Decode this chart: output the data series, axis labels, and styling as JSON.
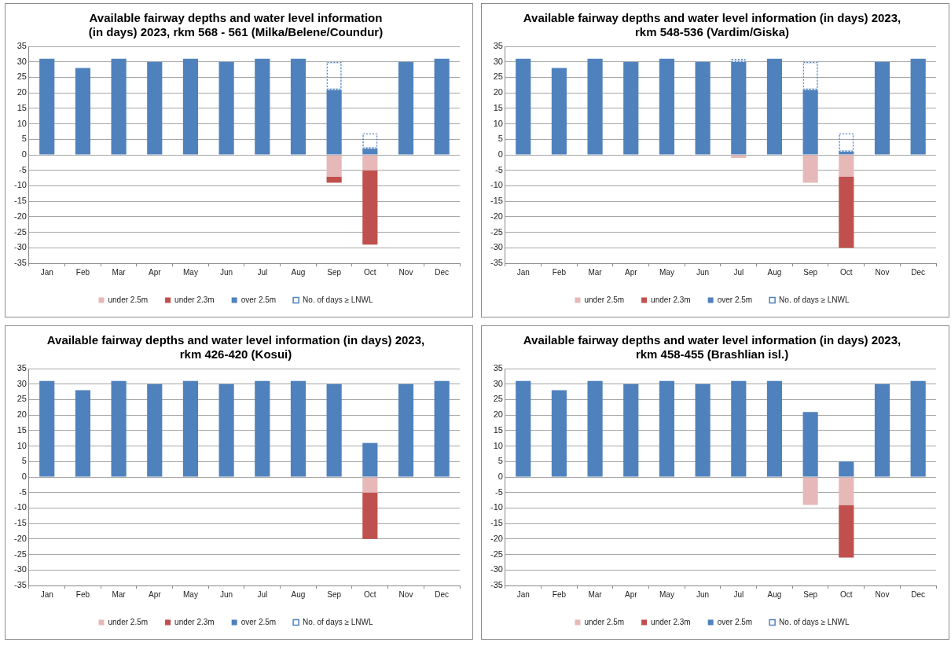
{
  "chart_data": [
    {
      "type": "bar",
      "title": "Available fairway depths and water level information\n(in days) 2023, rkm 568 - 561 (Milka/Belene/Coundur)",
      "categories": [
        "Jan",
        "Feb",
        "Mar",
        "Apr",
        "May",
        "Jun",
        "Jul",
        "Aug",
        "Sep",
        "Oct",
        "Nov",
        "Dec"
      ],
      "stacked": true,
      "ylim": [
        -35,
        35
      ],
      "yticks": [
        -35,
        -30,
        -25,
        -20,
        -15,
        -10,
        -5,
        0,
        5,
        10,
        15,
        20,
        25,
        30,
        35
      ],
      "grid": "y",
      "legend": "bottom",
      "series": [
        {
          "name": "under 2.5m",
          "color": "#e6b9b8",
          "values": [
            null,
            null,
            null,
            null,
            null,
            null,
            null,
            null,
            -7,
            -5,
            null,
            null
          ]
        },
        {
          "name": "under 2.3m",
          "color": "#c0504d",
          "values": [
            null,
            null,
            null,
            null,
            null,
            null,
            null,
            null,
            -2,
            -24,
            null,
            null
          ]
        },
        {
          "name": "over 2.5m",
          "color": "#4f81bd",
          "values": [
            31,
            28,
            31,
            30,
            31,
            30,
            31,
            31,
            21,
            2,
            30,
            31
          ]
        },
        {
          "name": "No. of days ≥ LNWL",
          "color": "#4f81bd",
          "line_style": "dotted",
          "values": [
            null,
            null,
            null,
            null,
            null,
            null,
            null,
            null,
            9,
            5,
            null,
            null
          ]
        }
      ]
    },
    {
      "type": "bar",
      "title": "Available fairway depths and water level information (in days) 2023,\nrkm 548-536 (Vardim/Giska)",
      "categories": [
        "Jan",
        "Feb",
        "Mar",
        "Apr",
        "May",
        "Jun",
        "Jul",
        "Aug",
        "Sep",
        "Oct",
        "Nov",
        "Dec"
      ],
      "stacked": true,
      "ylim": [
        -35,
        35
      ],
      "yticks": [
        -35,
        -30,
        -25,
        -20,
        -15,
        -10,
        -5,
        0,
        5,
        10,
        15,
        20,
        25,
        30,
        35
      ],
      "grid": "y",
      "legend": "bottom",
      "series": [
        {
          "name": "under 2.5m",
          "color": "#e6b9b8",
          "values": [
            null,
            null,
            null,
            null,
            null,
            null,
            -1,
            null,
            -9,
            -7,
            null,
            null
          ]
        },
        {
          "name": "under 2.3m",
          "color": "#c0504d",
          "values": [
            null,
            null,
            null,
            null,
            null,
            null,
            null,
            null,
            null,
            -23,
            null,
            null
          ]
        },
        {
          "name": "over 2.5m",
          "color": "#4f81bd",
          "values": [
            31,
            28,
            31,
            30,
            31,
            30,
            30,
            31,
            21,
            1,
            30,
            31
          ]
        },
        {
          "name": "No. of days ≥ LNWL",
          "color": "#4f81bd",
          "line_style": "dotted",
          "values": [
            null,
            null,
            null,
            null,
            null,
            null,
            1,
            null,
            9,
            6,
            null,
            null
          ]
        }
      ]
    },
    {
      "type": "bar",
      "title": "Available fairway depths and water level information (in days) 2023,\nrkm 426-420 (Kosui)",
      "categories": [
        "Jan",
        "Feb",
        "Mar",
        "Apr",
        "May",
        "Jun",
        "Jul",
        "Aug",
        "Sep",
        "Oct",
        "Nov",
        "Dec"
      ],
      "stacked": true,
      "ylim": [
        -35,
        35
      ],
      "yticks": [
        -35,
        -30,
        -25,
        -20,
        -15,
        -10,
        -5,
        0,
        5,
        10,
        15,
        20,
        25,
        30,
        35
      ],
      "grid": "y",
      "legend": "bottom",
      "series": [
        {
          "name": "under 2.5m",
          "color": "#e6b9b8",
          "values": [
            null,
            null,
            null,
            null,
            null,
            null,
            null,
            null,
            null,
            -5,
            null,
            null
          ]
        },
        {
          "name": "under 2.3m",
          "color": "#c0504d",
          "values": [
            null,
            null,
            null,
            null,
            null,
            null,
            null,
            null,
            null,
            -15,
            null,
            null
          ]
        },
        {
          "name": "over 2.5m",
          "color": "#4f81bd",
          "values": [
            31,
            28,
            31,
            30,
            31,
            30,
            31,
            31,
            30,
            11,
            30,
            31
          ]
        },
        {
          "name": "No. of days ≥ LNWL",
          "color": "#4f81bd",
          "line_style": "dotted",
          "values": [
            null,
            null,
            null,
            null,
            null,
            null,
            null,
            null,
            null,
            null,
            null,
            null
          ]
        }
      ]
    },
    {
      "type": "bar",
      "title": "Available fairway depths and water level information (in days) 2023,\nrkm 458-455 (Brashlian isl.)",
      "categories": [
        "Jan",
        "Feb",
        "Mar",
        "Apr",
        "May",
        "Jun",
        "Jul",
        "Aug",
        "Sep",
        "Oct",
        "Nov",
        "Dec"
      ],
      "stacked": true,
      "ylim": [
        -35,
        35
      ],
      "yticks": [
        -35,
        -30,
        -25,
        -20,
        -15,
        -10,
        -5,
        0,
        5,
        10,
        15,
        20,
        25,
        30,
        35
      ],
      "grid": "y",
      "legend": "bottom",
      "series": [
        {
          "name": "under 2.5m",
          "color": "#e6b9b8",
          "values": [
            null,
            null,
            null,
            null,
            null,
            null,
            null,
            null,
            -9,
            -9,
            null,
            null
          ]
        },
        {
          "name": "under 2.3m",
          "color": "#c0504d",
          "values": [
            null,
            null,
            null,
            null,
            null,
            null,
            null,
            null,
            null,
            -17,
            null,
            null
          ]
        },
        {
          "name": "over 2.5m",
          "color": "#4f81bd",
          "values": [
            31,
            28,
            31,
            30,
            31,
            30,
            31,
            31,
            21,
            5,
            30,
            31
          ]
        },
        {
          "name": "No. of days ≥ LNWL",
          "color": "#4f81bd",
          "line_style": "dotted",
          "values": [
            null,
            null,
            null,
            null,
            null,
            null,
            null,
            null,
            null,
            null,
            null,
            null
          ]
        }
      ]
    }
  ]
}
